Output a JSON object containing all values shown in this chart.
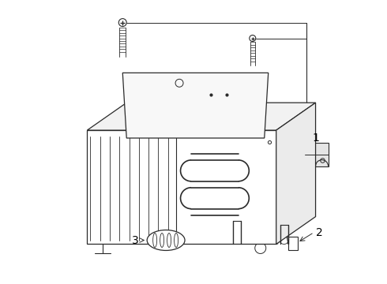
{
  "bg_color": "#ffffff",
  "line_color": "#2a2a2a",
  "label_color": "#000000",
  "part_label_1": [
    0.875,
    0.5
  ],
  "part_label_2": [
    0.76,
    0.155
  ],
  "part_label_3": [
    0.245,
    0.155
  ],
  "figsize": [
    4.9,
    3.6
  ],
  "dpi": 100
}
